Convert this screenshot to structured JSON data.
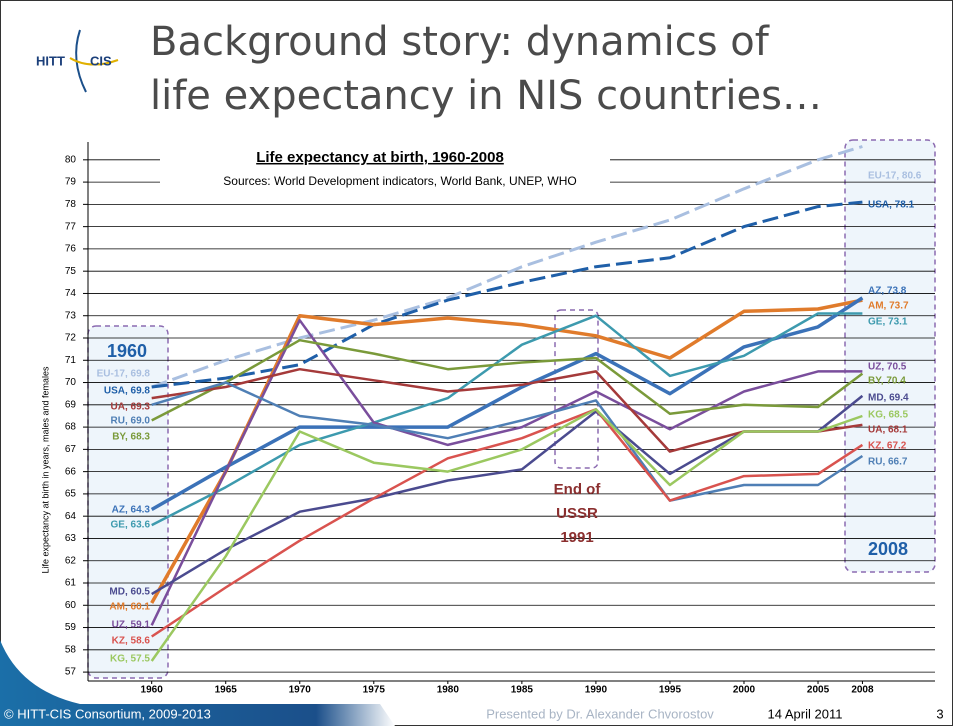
{
  "slide": {
    "title_lines": [
      "Background story: dynamics of",
      "life expectancy in NIS countries…"
    ],
    "logo": [
      "HITT",
      "CIS"
    ],
    "footer": {
      "left": "© HITT-CIS Consortium, 2009-2013",
      "center": "Presented by Dr. Alexander Chvorostov",
      "date": "14 April 2011",
      "page": "3"
    }
  },
  "chart_data": {
    "type": "line",
    "title": "Life expectancy at birth, 1960-2008",
    "subtitle": "Sources: World Development indicators, World Bank, UNEP, WHO",
    "y_label": "Life expectancy at birth in years, males and females",
    "annotations": [
      "1960",
      "2008",
      "End of",
      "USSR",
      "1991"
    ],
    "x": [
      1960,
      1965,
      1970,
      1975,
      1980,
      1985,
      1990,
      1995,
      2000,
      2005,
      2008
    ],
    "xlim": [
      1955.7,
      2012.9
    ],
    "xticks": [
      1960,
      1965,
      1970,
      1975,
      1980,
      1985,
      1990,
      1995,
      2000,
      2005,
      2008
    ],
    "ylim": [
      56.6,
      80.8
    ],
    "yticks": [
      57,
      58,
      59,
      60,
      61,
      62,
      63,
      64,
      65,
      66,
      67,
      68,
      69,
      70,
      71,
      72,
      73,
      74,
      75,
      76,
      77,
      78,
      79,
      80
    ],
    "grid": true,
    "series": [
      {
        "name": "EU-17",
        "color": "#a9bfe0",
        "dashed": true,
        "values": [
          69.8,
          71.0,
          72.0,
          72.8,
          73.8,
          75.2,
          76.3,
          77.3,
          78.7,
          80.0,
          80.6
        ],
        "value_labels": [
          "EU-17, 69.8",
          null,
          null,
          null,
          null,
          null,
          null,
          null,
          null,
          null,
          "EU-17, 80.6"
        ]
      },
      {
        "name": "USA",
        "color": "#1f5fa8",
        "dashed": true,
        "values": [
          69.8,
          70.2,
          70.8,
          72.6,
          73.7,
          74.5,
          75.2,
          75.6,
          77.0,
          77.9,
          78.1
        ],
        "value_labels": [
          "USA, 69.8",
          null,
          null,
          null,
          null,
          null,
          null,
          null,
          null,
          null,
          "USA, 78.1"
        ]
      },
      {
        "name": "AM",
        "color": "#e07b2b",
        "values": [
          60.1,
          66.0,
          73.0,
          72.6,
          72.9,
          72.6,
          72.1,
          71.1,
          73.2,
          73.3,
          73.7
        ],
        "value_labels": [
          "AM, 60.1",
          null,
          null,
          null,
          null,
          null,
          null,
          null,
          null,
          null,
          "AM, 73.7"
        ]
      },
      {
        "name": "AZ",
        "color": "#3b72b8",
        "values": [
          64.3,
          66.2,
          68.0,
          68.0,
          68.0,
          69.8,
          71.3,
          69.5,
          71.6,
          72.5,
          73.8
        ],
        "value_labels": [
          "AZ, 64.3",
          null,
          null,
          null,
          null,
          null,
          null,
          null,
          null,
          null,
          "AZ, 73.8"
        ]
      },
      {
        "name": "GE",
        "color": "#3d9aae",
        "values": [
          63.6,
          65.3,
          67.2,
          68.2,
          69.3,
          71.7,
          73.0,
          70.3,
          71.2,
          73.1,
          73.1
        ],
        "value_labels": [
          "GE, 63.6",
          null,
          null,
          null,
          null,
          null,
          null,
          null,
          null,
          null,
          "GE, 73.1"
        ]
      },
      {
        "name": "UZ",
        "color": "#7a4e9c",
        "values": [
          59.1,
          66.0,
          72.8,
          68.2,
          67.2,
          68.0,
          69.6,
          67.9,
          69.6,
          70.5,
          70.5
        ],
        "value_labels": [
          "UZ, 59.1",
          null,
          null,
          null,
          null,
          null,
          null,
          null,
          null,
          null,
          "UZ, 70.5"
        ]
      },
      {
        "name": "BY",
        "color": "#7a9a3a",
        "values": [
          68.3,
          70.0,
          71.9,
          71.3,
          70.6,
          70.9,
          71.1,
          68.6,
          69.0,
          68.9,
          70.4
        ],
        "value_labels": [
          "BY, 68.3",
          null,
          null,
          null,
          null,
          null,
          null,
          null,
          null,
          null,
          "BY, 70.4"
        ]
      },
      {
        "name": "MD",
        "color": "#4b4b8f",
        "values": [
          60.5,
          62.5,
          64.2,
          64.8,
          65.6,
          66.1,
          68.7,
          65.9,
          67.8,
          67.8,
          69.4
        ],
        "value_labels": [
          "MD, 60.5",
          null,
          null,
          null,
          null,
          null,
          null,
          null,
          null,
          null,
          "MD, 69.4"
        ]
      },
      {
        "name": "UA",
        "color": "#a53a3a",
        "values": [
          69.3,
          69.8,
          70.6,
          70.1,
          69.6,
          69.9,
          70.5,
          66.9,
          67.8,
          67.8,
          68.1
        ],
        "value_labels": [
          "UA, 69.3",
          null,
          null,
          null,
          null,
          null,
          null,
          null,
          null,
          null,
          "UA, 68.1"
        ]
      },
      {
        "name": "RU",
        "color": "#4f7fb5",
        "values": [
          69.0,
          70.0,
          68.5,
          68.1,
          67.5,
          68.3,
          69.2,
          64.7,
          65.4,
          65.4,
          66.7
        ],
        "value_labels": [
          "RU, 69.0",
          null,
          null,
          null,
          null,
          null,
          null,
          null,
          null,
          null,
          "RU, 66.7"
        ]
      },
      {
        "name": "KZ",
        "color": "#d9534f",
        "values": [
          58.6,
          60.8,
          62.9,
          64.8,
          66.6,
          67.5,
          68.8,
          64.7,
          65.8,
          65.9,
          67.2
        ],
        "value_labels": [
          "KZ, 58.6",
          null,
          null,
          null,
          null,
          null,
          null,
          null,
          null,
          null,
          "KZ, 67.2"
        ]
      },
      {
        "name": "KG",
        "color": "#9bc860",
        "values": [
          57.5,
          62.2,
          67.8,
          66.4,
          66.0,
          67.0,
          68.8,
          65.4,
          67.8,
          67.8,
          68.5
        ],
        "value_labels": [
          "KG, 57.5",
          null,
          null,
          null,
          null,
          null,
          null,
          null,
          null,
          null,
          "KG, 68.5"
        ]
      }
    ]
  }
}
